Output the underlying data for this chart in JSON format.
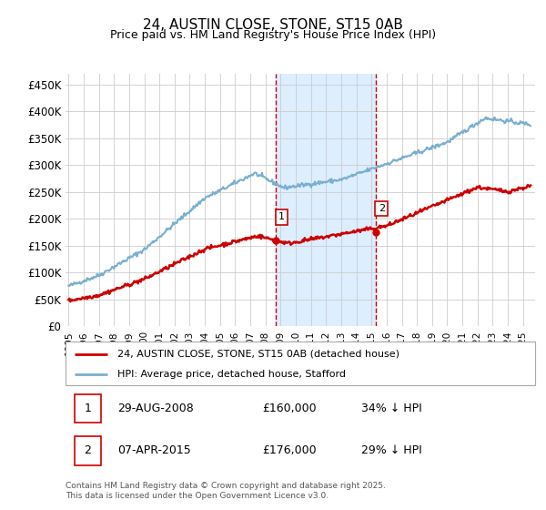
{
  "title": "24, AUSTIN CLOSE, STONE, ST15 0AB",
  "subtitle": "Price paid vs. HM Land Registry's House Price Index (HPI)",
  "ylabel_ticks": [
    "£0",
    "£50K",
    "£100K",
    "£150K",
    "£200K",
    "£250K",
    "£300K",
    "£350K",
    "£400K",
    "£450K"
  ],
  "ytick_values": [
    0,
    50000,
    100000,
    150000,
    200000,
    250000,
    300000,
    350000,
    400000,
    450000
  ],
  "ylim": [
    0,
    470000
  ],
  "xlim_start": 1994.8,
  "xlim_end": 2025.8,
  "purchase1_x": 2008.66,
  "purchase1_y": 160000,
  "purchase1_label": "1",
  "purchase1_date": "29-AUG-2008",
  "purchase1_price": "£160,000",
  "purchase1_hpi": "34% ↓ HPI",
  "purchase2_x": 2015.27,
  "purchase2_y": 176000,
  "purchase2_label": "2",
  "purchase2_date": "07-APR-2015",
  "purchase2_price": "£176,000",
  "purchase2_hpi": "29% ↓ HPI",
  "red_line_color": "#cc0000",
  "blue_line_color": "#7aafcf",
  "shade_color": "#ddeeff",
  "vline_color": "#cc0000",
  "grid_color": "#cccccc",
  "bg_color": "#ffffff",
  "legend_red_label": "24, AUSTIN CLOSE, STONE, ST15 0AB (detached house)",
  "legend_blue_label": "HPI: Average price, detached house, Stafford",
  "footnote": "Contains HM Land Registry data © Crown copyright and database right 2025.\nThis data is licensed under the Open Government Licence v3.0.",
  "xtick_years": [
    1995,
    1996,
    1997,
    1998,
    1999,
    2000,
    2001,
    2002,
    2003,
    2004,
    2005,
    2006,
    2007,
    2008,
    2009,
    2010,
    2011,
    2012,
    2013,
    2014,
    2015,
    2016,
    2017,
    2018,
    2019,
    2020,
    2021,
    2022,
    2023,
    2024,
    2025
  ]
}
